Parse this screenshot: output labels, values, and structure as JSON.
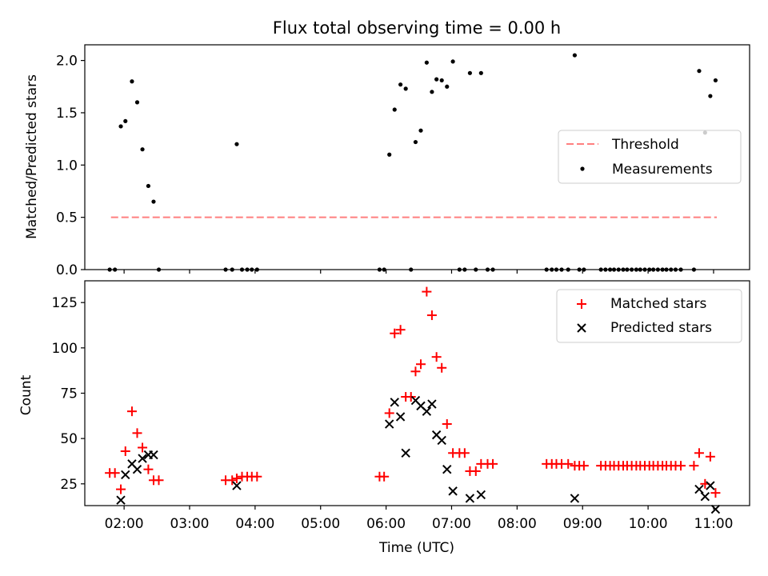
{
  "colors": {
    "threshold": "#ff7f7f",
    "measurements": "#000000",
    "matched": "#ff0000",
    "predicted": "#000000",
    "axis": "#000000",
    "legend_border": "#cccccc"
  },
  "chart_data": [
    {
      "type": "scatter",
      "title": "Flux total observing time = 0.00 h",
      "xlabel": "",
      "ylabel": "Matched/Predicted stars",
      "xlim": [
        1.4,
        11.55
      ],
      "ylim": [
        0,
        2.15
      ],
      "yticks": [
        0.0,
        0.5,
        1.0,
        1.5,
        2.0
      ],
      "ytick_labels": [
        "0.0",
        "0.5",
        "1.0",
        "1.5",
        "2.0"
      ],
      "legend": {
        "position": "center-right",
        "entries": [
          "Threshold",
          "Measurements"
        ]
      },
      "threshold": {
        "name": "Threshold",
        "x": [
          1.8,
          11.05
        ],
        "y": 0.5,
        "style": "dashed"
      },
      "series": [
        {
          "name": "Measurements",
          "marker": "dot",
          "points": [
            [
              1.78,
              0
            ],
            [
              1.86,
              0
            ],
            [
              1.95,
              1.37
            ],
            [
              2.02,
              1.42
            ],
            [
              2.12,
              1.8
            ],
            [
              2.2,
              1.6
            ],
            [
              2.28,
              1.15
            ],
            [
              2.37,
              0.8
            ],
            [
              2.45,
              0.65
            ],
            [
              2.53,
              0
            ],
            [
              3.55,
              0
            ],
            [
              3.65,
              0
            ],
            [
              3.72,
              1.2
            ],
            [
              3.8,
              0
            ],
            [
              3.88,
              0
            ],
            [
              3.95,
              0
            ],
            [
              4.03,
              0
            ],
            [
              5.9,
              0
            ],
            [
              5.97,
              0
            ],
            [
              6.05,
              1.1
            ],
            [
              6.13,
              1.53
            ],
            [
              6.22,
              1.77
            ],
            [
              6.3,
              1.73
            ],
            [
              6.38,
              0
            ],
            [
              6.45,
              1.22
            ],
            [
              6.53,
              1.33
            ],
            [
              6.62,
              1.98
            ],
            [
              6.7,
              1.7
            ],
            [
              6.77,
              1.82
            ],
            [
              6.85,
              1.81
            ],
            [
              6.93,
              1.75
            ],
            [
              7.02,
              1.99
            ],
            [
              7.12,
              0
            ],
            [
              7.2,
              0
            ],
            [
              7.28,
              1.88
            ],
            [
              7.37,
              0
            ],
            [
              7.45,
              1.88
            ],
            [
              7.55,
              0
            ],
            [
              7.63,
              0
            ],
            [
              8.45,
              0
            ],
            [
              8.53,
              0
            ],
            [
              8.6,
              0
            ],
            [
              8.68,
              0
            ],
            [
              8.78,
              0
            ],
            [
              8.88,
              2.05
            ],
            [
              8.95,
              0
            ],
            [
              9.02,
              0
            ],
            [
              9.28,
              0
            ],
            [
              9.35,
              0
            ],
            [
              9.42,
              0
            ],
            [
              9.48,
              0
            ],
            [
              9.55,
              0
            ],
            [
              9.62,
              0
            ],
            [
              9.68,
              0
            ],
            [
              9.75,
              0
            ],
            [
              9.82,
              0
            ],
            [
              9.88,
              0
            ],
            [
              9.95,
              0
            ],
            [
              10.02,
              0
            ],
            [
              10.08,
              0
            ],
            [
              10.15,
              0
            ],
            [
              10.22,
              0
            ],
            [
              10.28,
              0
            ],
            [
              10.35,
              0
            ],
            [
              10.42,
              0
            ],
            [
              10.5,
              0
            ],
            [
              10.7,
              0
            ],
            [
              10.78,
              1.9
            ],
            [
              10.87,
              1.31
            ],
            [
              10.95,
              1.66
            ],
            [
              11.03,
              1.81
            ]
          ]
        }
      ]
    },
    {
      "type": "scatter",
      "title": "",
      "xlabel": "Time (UTC)",
      "ylabel": "Count",
      "xlim": [
        1.4,
        11.55
      ],
      "ylim": [
        13,
        137
      ],
      "xticks": [
        2,
        3,
        4,
        5,
        6,
        7,
        8,
        9,
        10,
        11
      ],
      "xtick_labels": [
        "02:00",
        "03:00",
        "04:00",
        "05:00",
        "06:00",
        "07:00",
        "08:00",
        "09:00",
        "10:00",
        "11:00"
      ],
      "yticks": [
        25,
        50,
        75,
        100,
        125
      ],
      "ytick_labels": [
        "25",
        "50",
        "75",
        "100",
        "125"
      ],
      "legend": {
        "position": "top-right",
        "entries": [
          "Matched stars",
          "Predicted stars"
        ]
      },
      "series": [
        {
          "name": "Matched stars",
          "marker": "plus",
          "points": [
            [
              1.78,
              31
            ],
            [
              1.86,
              31
            ],
            [
              1.95,
              22
            ],
            [
              2.02,
              43
            ],
            [
              2.12,
              65
            ],
            [
              2.2,
              53
            ],
            [
              2.28,
              45
            ],
            [
              2.37,
              33
            ],
            [
              2.45,
              27
            ],
            [
              2.53,
              27
            ],
            [
              3.55,
              27
            ],
            [
              3.65,
              27
            ],
            [
              3.72,
              28
            ],
            [
              3.8,
              29
            ],
            [
              3.88,
              29
            ],
            [
              3.95,
              29
            ],
            [
              4.03,
              29
            ],
            [
              5.9,
              29
            ],
            [
              5.97,
              29
            ],
            [
              6.05,
              64
            ],
            [
              6.13,
              108
            ],
            [
              6.22,
              110
            ],
            [
              6.3,
              73
            ],
            [
              6.38,
              73
            ],
            [
              6.45,
              87
            ],
            [
              6.53,
              91
            ],
            [
              6.62,
              131
            ],
            [
              6.7,
              118
            ],
            [
              6.77,
              95
            ],
            [
              6.85,
              89
            ],
            [
              6.93,
              58
            ],
            [
              7.02,
              42
            ],
            [
              7.12,
              42
            ],
            [
              7.2,
              42
            ],
            [
              7.28,
              32
            ],
            [
              7.37,
              32
            ],
            [
              7.45,
              36
            ],
            [
              7.55,
              36
            ],
            [
              7.63,
              36
            ],
            [
              8.45,
              36
            ],
            [
              8.53,
              36
            ],
            [
              8.6,
              36
            ],
            [
              8.68,
              36
            ],
            [
              8.78,
              36
            ],
            [
              8.88,
              35
            ],
            [
              8.95,
              35
            ],
            [
              9.02,
              35
            ],
            [
              9.28,
              35
            ],
            [
              9.35,
              35
            ],
            [
              9.42,
              35
            ],
            [
              9.48,
              35
            ],
            [
              9.55,
              35
            ],
            [
              9.62,
              35
            ],
            [
              9.68,
              35
            ],
            [
              9.75,
              35
            ],
            [
              9.82,
              35
            ],
            [
              9.88,
              35
            ],
            [
              9.95,
              35
            ],
            [
              10.02,
              35
            ],
            [
              10.08,
              35
            ],
            [
              10.15,
              35
            ],
            [
              10.22,
              35
            ],
            [
              10.28,
              35
            ],
            [
              10.35,
              35
            ],
            [
              10.42,
              35
            ],
            [
              10.5,
              35
            ],
            [
              10.7,
              35
            ],
            [
              10.78,
              42
            ],
            [
              10.87,
              25
            ],
            [
              10.95,
              40
            ],
            [
              11.03,
              20
            ]
          ]
        },
        {
          "name": "Predicted stars",
          "marker": "x",
          "points": [
            [
              1.95,
              16
            ],
            [
              2.02,
              30
            ],
            [
              2.12,
              36
            ],
            [
              2.2,
              33
            ],
            [
              2.28,
              39
            ],
            [
              2.37,
              41
            ],
            [
              2.45,
              41
            ],
            [
              3.72,
              24
            ],
            [
              6.05,
              58
            ],
            [
              6.13,
              70
            ],
            [
              6.22,
              62
            ],
            [
              6.3,
              42
            ],
            [
              6.45,
              71
            ],
            [
              6.53,
              68
            ],
            [
              6.62,
              65
            ],
            [
              6.7,
              69
            ],
            [
              6.77,
              52
            ],
            [
              6.85,
              49
            ],
            [
              6.93,
              33
            ],
            [
              7.02,
              21
            ],
            [
              7.28,
              17
            ],
            [
              7.45,
              19
            ],
            [
              8.88,
              17
            ],
            [
              10.78,
              22
            ],
            [
              10.87,
              18
            ],
            [
              10.95,
              24
            ],
            [
              11.03,
              11
            ]
          ]
        }
      ]
    }
  ]
}
